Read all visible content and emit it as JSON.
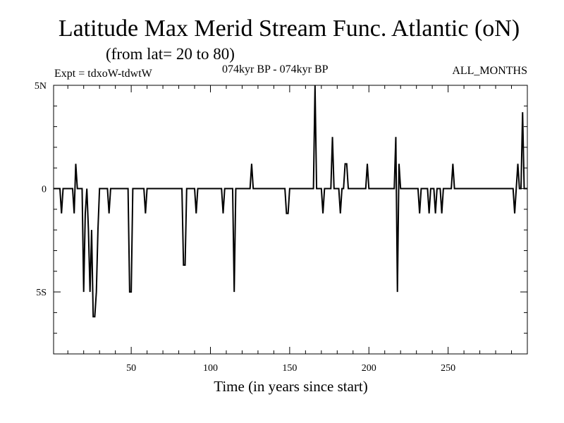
{
  "header": {
    "title": "Latitude Max Merid Stream Func. Atlantic (oN)",
    "subtitle": "(from lat= 20 to 80)",
    "experiment": "Expt = tdxoW-tdwtW",
    "period": "074kyr BP - 074kyr BP",
    "months": "ALL_MONTHS"
  },
  "chart_data": {
    "type": "line",
    "title": "Latitude Max Merid Stream Func. Atlantic (oN)",
    "subtitle": "(from lat= 20 to 80)",
    "xlabel": "Time (in years since start)",
    "ylabel": "",
    "xlim": [
      1,
      300
    ],
    "ylim": [
      -8,
      5
    ],
    "x_ticks": [
      50,
      100,
      150,
      200,
      250
    ],
    "x_tick_labels": [
      "50",
      "100",
      "150",
      "200",
      "250"
    ],
    "y_ticks": [
      5,
      0,
      -5
    ],
    "y_tick_labels": [
      "5N",
      "0",
      "5S"
    ],
    "grid": false,
    "series": [
      {
        "points": [
          [
            1,
            0
          ],
          [
            5,
            0
          ],
          [
            6,
            -1.2
          ],
          [
            7,
            0
          ],
          [
            13,
            0
          ],
          [
            14,
            -1.2
          ],
          [
            15,
            1.2
          ],
          [
            16,
            0
          ],
          [
            19,
            0
          ],
          [
            20,
            -5
          ],
          [
            21,
            -1.2
          ],
          [
            22,
            0
          ],
          [
            23,
            -2
          ],
          [
            24,
            -5
          ],
          [
            25,
            -2
          ],
          [
            26,
            -6.2
          ],
          [
            27,
            -6.2
          ],
          [
            28,
            -5
          ],
          [
            29,
            -2
          ],
          [
            30,
            0
          ],
          [
            35,
            0
          ],
          [
            36,
            -1.2
          ],
          [
            37,
            0
          ],
          [
            48,
            0
          ],
          [
            49,
            -5
          ],
          [
            50,
            -5
          ],
          [
            51,
            0
          ],
          [
            58,
            0
          ],
          [
            59,
            -1.2
          ],
          [
            60,
            0
          ],
          [
            82,
            0
          ],
          [
            83,
            -3.7
          ],
          [
            84,
            -3.7
          ],
          [
            85,
            0
          ],
          [
            90,
            0
          ],
          [
            91,
            -1.2
          ],
          [
            92,
            0
          ],
          [
            107,
            0
          ],
          [
            108,
            -1.2
          ],
          [
            109,
            0
          ],
          [
            114,
            0
          ],
          [
            115,
            -5
          ],
          [
            116,
            0
          ],
          [
            125,
            0
          ],
          [
            126,
            1.2
          ],
          [
            127,
            0
          ],
          [
            147,
            0
          ],
          [
            148,
            -1.2
          ],
          [
            149,
            -1.2
          ],
          [
            150,
            0
          ],
          [
            165,
            0
          ],
          [
            166,
            5
          ],
          [
            167,
            0
          ],
          [
            170,
            0
          ],
          [
            171,
            -1.2
          ],
          [
            172,
            0
          ],
          [
            176,
            0
          ],
          [
            177,
            2.5
          ],
          [
            178,
            0
          ],
          [
            181,
            0
          ],
          [
            182,
            -1.2
          ],
          [
            183,
            0
          ],
          [
            184,
            0
          ],
          [
            185,
            1.2
          ],
          [
            186,
            1.2
          ],
          [
            187,
            0
          ],
          [
            198,
            0
          ],
          [
            199,
            1.2
          ],
          [
            200,
            0
          ],
          [
            216,
            0
          ],
          [
            217,
            2.5
          ],
          [
            218,
            -5
          ],
          [
            219,
            1.2
          ],
          [
            220,
            0
          ],
          [
            231,
            0
          ],
          [
            232,
            -1.2
          ],
          [
            233,
            0
          ],
          [
            237,
            0
          ],
          [
            238,
            -1.2
          ],
          [
            239,
            0
          ],
          [
            241,
            0
          ],
          [
            242,
            -1.2
          ],
          [
            243,
            0
          ],
          [
            245,
            0
          ],
          [
            246,
            -1.2
          ],
          [
            247,
            0
          ],
          [
            252,
            0
          ],
          [
            253,
            1.2
          ],
          [
            254,
            0
          ],
          [
            291,
            0
          ],
          [
            292,
            -1.2
          ],
          [
            293,
            0
          ],
          [
            294,
            1.2
          ],
          [
            295,
            0
          ],
          [
            296,
            0
          ],
          [
            297,
            3.7
          ],
          [
            298,
            0
          ],
          [
            300,
            0
          ]
        ]
      }
    ]
  }
}
